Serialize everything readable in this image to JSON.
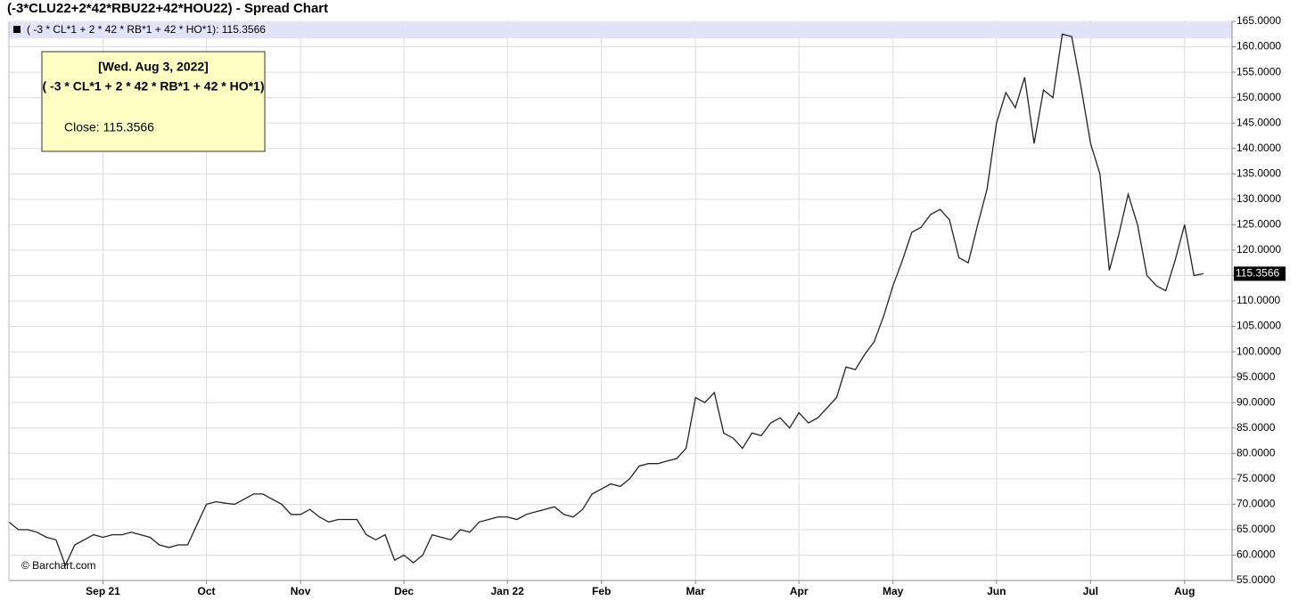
{
  "chart_data": {
    "type": "line",
    "title": "(-3*CLU22+2*42*RBU22+42*HOU22) - Spread Chart",
    "legend_text": "( -3 * CL*1 + 2 * 42 * RB*1 + 42 * HO*1): 115.3566",
    "tooltip": {
      "date": "[Wed. Aug 3, 2022]",
      "title": "( -3 * CL*1 + 2 * 42 * RB*1 + 42 * HO*1)",
      "close": "Close: 115.3566"
    },
    "credit": "© Barchart.com",
    "categories": [
      null,
      null,
      null,
      null,
      null,
      null,
      null,
      null,
      null,
      null,
      "Sep 21",
      null,
      null,
      null,
      null,
      null,
      null,
      null,
      null,
      null,
      null,
      "Oct",
      null,
      null,
      null,
      null,
      null,
      null,
      null,
      null,
      null,
      "Nov",
      null,
      null,
      null,
      null,
      null,
      null,
      null,
      null,
      null,
      null,
      "Dec",
      null,
      null,
      null,
      null,
      null,
      null,
      null,
      null,
      null,
      null,
      "Jan 22",
      null,
      null,
      null,
      null,
      null,
      null,
      null,
      null,
      null,
      "Feb",
      null,
      null,
      null,
      null,
      null,
      null,
      null,
      null,
      null,
      "Mar",
      null,
      null,
      null,
      null,
      null,
      null,
      null,
      null,
      null,
      null,
      "Apr",
      null,
      null,
      null,
      null,
      null,
      null,
      null,
      null,
      null,
      "May",
      null,
      null,
      null,
      null,
      null,
      null,
      null,
      null,
      null,
      null,
      "Jun",
      null,
      null,
      null,
      null,
      null,
      null,
      null,
      null,
      null,
      "Jul",
      null,
      null,
      null,
      null,
      null,
      null,
      null,
      null,
      null,
      "Aug",
      null,
      null
    ],
    "series": [
      {
        "name": "( -3 * CL*1 + 2 * 42 * RB*1 + 42 * HO*1)",
        "color": "#222222",
        "values": [
          66.5,
          65,
          65,
          64.5,
          63.5,
          63,
          58,
          62,
          63,
          64,
          63.5,
          64,
          64,
          64.5,
          64,
          63.5,
          62,
          61.5,
          62,
          62,
          66,
          70,
          70.5,
          70.2,
          70,
          71,
          72,
          72,
          71,
          70,
          68,
          68,
          69,
          67.5,
          66.5,
          67,
          67,
          67,
          64,
          63,
          64,
          59,
          60,
          58.5,
          60,
          64,
          63.5,
          63,
          65,
          64.5,
          66.5,
          67,
          67.5,
          67.5,
          67,
          68,
          68.5,
          69,
          69.5,
          68,
          67.5,
          69,
          72,
          73,
          74,
          73.5,
          75,
          77.5,
          78,
          78,
          78.5,
          79,
          81,
          91,
          90,
          92,
          84,
          83,
          81,
          84,
          83.5,
          86,
          87,
          85,
          88,
          86,
          87,
          89,
          91,
          97,
          96.5,
          99.5,
          102,
          107,
          113,
          118,
          123.5,
          124.5,
          127,
          128,
          126,
          118.5,
          117.5,
          125,
          132,
          145,
          151,
          148,
          154,
          141,
          151.5,
          150,
          162.5,
          162,
          152,
          141,
          135,
          116,
          123,
          131,
          125,
          115,
          113,
          112,
          118,
          125,
          115,
          115.3566
        ]
      }
    ],
    "ylim": [
      55,
      165
    ],
    "yticks": [
      {
        "value": 55,
        "label": "55.0000"
      },
      {
        "value": 60,
        "label": "60.0000"
      },
      {
        "value": 65,
        "label": "65.0000"
      },
      {
        "value": 70,
        "label": "70.0000"
      },
      {
        "value": 75,
        "label": "75.0000"
      },
      {
        "value": 80,
        "label": "80.0000"
      },
      {
        "value": 85,
        "label": "85.0000"
      },
      {
        "value": 90,
        "label": "90.0000"
      },
      {
        "value": 95,
        "label": "95.0000"
      },
      {
        "value": 100,
        "label": "100.0000"
      },
      {
        "value": 105,
        "label": "105.0000"
      },
      {
        "value": 110,
        "label": "110.0000"
      },
      {
        "value": 115,
        "label": "115.0000"
      },
      {
        "value": 120,
        "label": "120.0000"
      },
      {
        "value": 125,
        "label": "125.0000"
      },
      {
        "value": 130,
        "label": "130.0000"
      },
      {
        "value": 135,
        "label": "135.0000"
      },
      {
        "value": 140,
        "label": "140.0000"
      },
      {
        "value": 145,
        "label": "145.0000"
      },
      {
        "value": 150,
        "label": "150.0000"
      },
      {
        "value": 155,
        "label": "155.0000"
      },
      {
        "value": 160,
        "label": "160.0000"
      },
      {
        "value": 165,
        "label": "165.0000"
      }
    ],
    "grid": true
  }
}
